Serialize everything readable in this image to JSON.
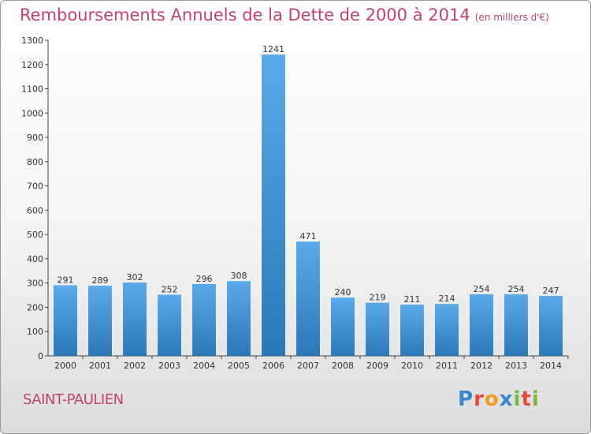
{
  "title": "Remboursements Annuels de la Dette de 2000 à 2014",
  "subtitle": "(en milliers d'€)",
  "location": "SAINT-PAULIEN",
  "logo": "Proxiti",
  "colors": {
    "accent": "#c0446c",
    "bar_top": "#5aaaea",
    "bar_bottom": "#2a78b8"
  },
  "chart_data": {
    "type": "bar",
    "categories": [
      "2000",
      "2001",
      "2002",
      "2003",
      "2004",
      "2005",
      "2006",
      "2007",
      "2008",
      "2009",
      "2010",
      "2011",
      "2012",
      "2013",
      "2014"
    ],
    "values": [
      291,
      289,
      302,
      252,
      296,
      308,
      1241,
      471,
      240,
      219,
      211,
      214,
      254,
      254,
      247
    ],
    "yticks": [
      0,
      100,
      200,
      300,
      400,
      500,
      600,
      700,
      800,
      900,
      1000,
      1100,
      1200,
      1300
    ],
    "ylim": [
      0,
      1300
    ],
    "grid": false,
    "xlabel": "",
    "ylabel": ""
  }
}
